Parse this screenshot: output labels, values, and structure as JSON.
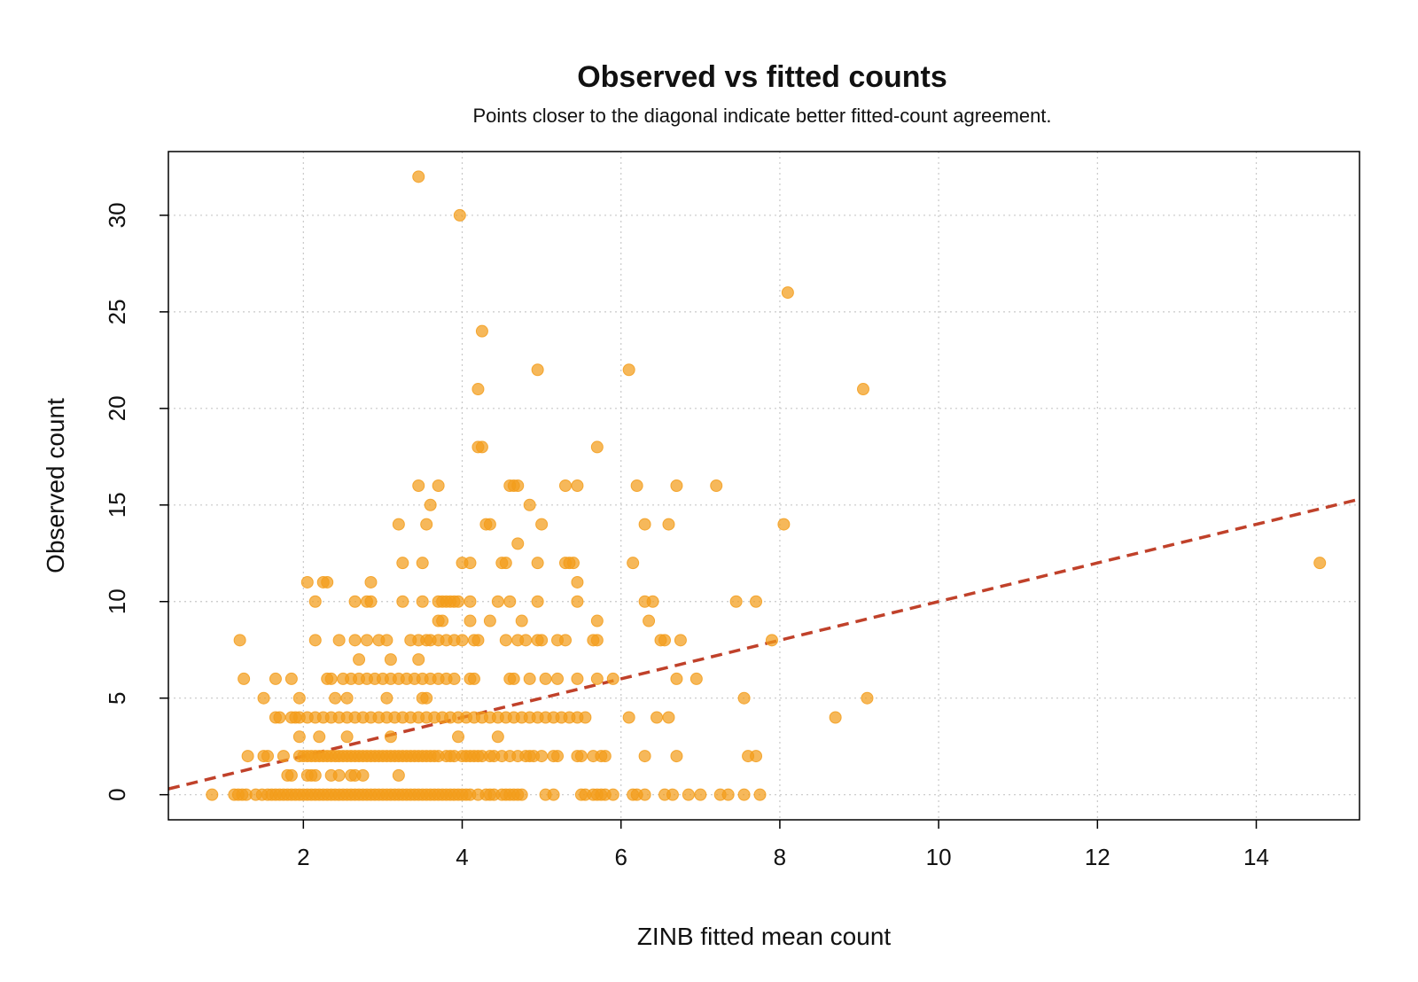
{
  "chart_data": {
    "type": "scatter",
    "title": "Observed vs fitted counts",
    "subtitle": "Points closer to the diagonal indicate better fitted-count agreement.",
    "xlabel": "ZINB fitted mean count",
    "ylabel": "Observed count",
    "xlim": [
      0.3,
      15.3
    ],
    "ylim": [
      -1.3,
      33.3
    ],
    "xticks": [
      2,
      4,
      6,
      8,
      10,
      12,
      14
    ],
    "yticks": [
      0,
      5,
      10,
      15,
      20,
      25,
      30
    ],
    "grid": true,
    "point_color": "#F39C1A",
    "reference_line": {
      "slope": 1,
      "intercept": 0,
      "style": "dashed",
      "color": "#C0412A"
    },
    "points": {
      "0": [
        0.85,
        1.13,
        1.18,
        1.23,
        1.28,
        1.4,
        1.48,
        1.55,
        1.6,
        1.65,
        1.7,
        1.75,
        1.8,
        1.85,
        1.9,
        1.95,
        2.0,
        2.05,
        2.1,
        2.15,
        2.2,
        2.25,
        2.3,
        2.35,
        2.4,
        2.45,
        2.5,
        2.55,
        2.6,
        2.65,
        2.7,
        2.75,
        2.8,
        2.85,
        2.9,
        2.95,
        3.0,
        3.05,
        3.1,
        3.15,
        3.2,
        3.25,
        3.3,
        3.35,
        3.4,
        3.45,
        3.5,
        3.55,
        3.6,
        3.65,
        3.7,
        3.75,
        3.8,
        3.85,
        3.9,
        3.95,
        4.0,
        4.05,
        4.1,
        4.2,
        4.3,
        4.35,
        4.4,
        4.5,
        4.55,
        4.6,
        4.65,
        4.7,
        4.75,
        5.05,
        5.15,
        5.5,
        5.55,
        5.65,
        5.7,
        5.75,
        5.8,
        5.9,
        6.15,
        6.2,
        6.3,
        6.55,
        6.65,
        6.85,
        7.0,
        7.25,
        7.35,
        7.55,
        7.75
      ],
      "1": [
        1.8,
        1.85,
        2.05,
        2.1,
        2.15,
        2.35,
        2.45,
        2.6,
        2.65,
        2.75,
        3.2
      ],
      "2": [
        1.3,
        1.5,
        1.55,
        1.75,
        1.95,
        2.0,
        2.05,
        2.1,
        2.15,
        2.2,
        2.25,
        2.3,
        2.35,
        2.4,
        2.45,
        2.5,
        2.55,
        2.6,
        2.65,
        2.7,
        2.75,
        2.8,
        2.85,
        2.9,
        2.95,
        3.0,
        3.05,
        3.1,
        3.15,
        3.2,
        3.25,
        3.3,
        3.35,
        3.4,
        3.45,
        3.5,
        3.55,
        3.6,
        3.65,
        3.7,
        3.8,
        3.85,
        3.9,
        4.0,
        4.05,
        4.1,
        4.15,
        4.2,
        4.25,
        4.35,
        4.4,
        4.5,
        4.6,
        4.7,
        4.8,
        4.85,
        4.9,
        5.0,
        5.15,
        5.2,
        5.45,
        5.5,
        5.65,
        5.75,
        5.8,
        6.3,
        6.7,
        7.6,
        7.7
      ],
      "3": [
        1.95,
        2.2,
        2.55,
        3.1,
        3.95,
        4.45
      ],
      "4": [
        1.65,
        1.7,
        1.85,
        1.9,
        1.95,
        2.05,
        2.15,
        2.25,
        2.35,
        2.45,
        2.55,
        2.65,
        2.75,
        2.85,
        2.95,
        3.05,
        3.15,
        3.25,
        3.35,
        3.45,
        3.55,
        3.65,
        3.75,
        3.85,
        3.95,
        4.05,
        4.15,
        4.25,
        4.35,
        4.45,
        4.55,
        4.65,
        4.75,
        4.85,
        4.95,
        5.05,
        5.15,
        5.25,
        5.35,
        5.45,
        5.55,
        6.1,
        6.45,
        6.6,
        8.7
      ],
      "5": [
        1.5,
        1.95,
        2.4,
        2.55,
        3.05,
        3.5,
        3.55,
        7.55,
        9.1
      ],
      "6": [
        1.25,
        1.65,
        1.85,
        2.3,
        2.35,
        2.5,
        2.6,
        2.7,
        2.8,
        2.9,
        3.0,
        3.1,
        3.2,
        3.3,
        3.4,
        3.5,
        3.6,
        3.7,
        3.8,
        3.9,
        4.1,
        4.15,
        4.6,
        4.65,
        4.85,
        5.05,
        5.2,
        5.45,
        5.7,
        5.9,
        6.7,
        6.95
      ],
      "7": [
        2.7,
        3.1,
        3.45
      ],
      "8": [
        1.2,
        2.15,
        2.45,
        2.65,
        2.8,
        2.95,
        3.05,
        3.35,
        3.45,
        3.55,
        3.6,
        3.7,
        3.8,
        3.9,
        4.0,
        4.15,
        4.2,
        4.55,
        4.7,
        4.8,
        4.95,
        5.0,
        5.2,
        5.3,
        5.65,
        5.7,
        6.5,
        6.55,
        6.75,
        7.9
      ],
      "9": [
        3.7,
        3.75,
        4.1,
        4.35,
        4.75,
        5.7,
        6.35
      ],
      "10": [
        2.15,
        2.65,
        2.8,
        2.85,
        3.25,
        3.5,
        3.7,
        3.75,
        3.8,
        3.85,
        3.9,
        3.95,
        4.1,
        4.45,
        4.6,
        4.95,
        5.45,
        6.3,
        6.4,
        7.45,
        7.7
      ],
      "11": [
        2.05,
        2.25,
        2.3,
        2.85,
        5.45
      ],
      "12": [
        3.25,
        3.5,
        4.0,
        4.1,
        4.5,
        4.55,
        4.95,
        5.3,
        5.35,
        5.4,
        6.15,
        14.8
      ],
      "13": [
        4.7
      ],
      "14": [
        3.2,
        3.55,
        4.3,
        4.35,
        5.0,
        6.3,
        6.6,
        8.05
      ],
      "15": [
        3.6,
        4.85
      ],
      "16": [
        3.45,
        3.7,
        4.6,
        4.65,
        4.7,
        5.3,
        5.45,
        6.2,
        6.7,
        7.2
      ],
      "18": [
        4.2,
        4.25,
        5.7
      ],
      "21": [
        4.2,
        9.05
      ],
      "22": [
        4.95,
        6.1
      ],
      "24": [
        4.25
      ],
      "26": [
        8.1
      ],
      "30": [
        3.97
      ],
      "32": [
        3.45
      ]
    }
  }
}
